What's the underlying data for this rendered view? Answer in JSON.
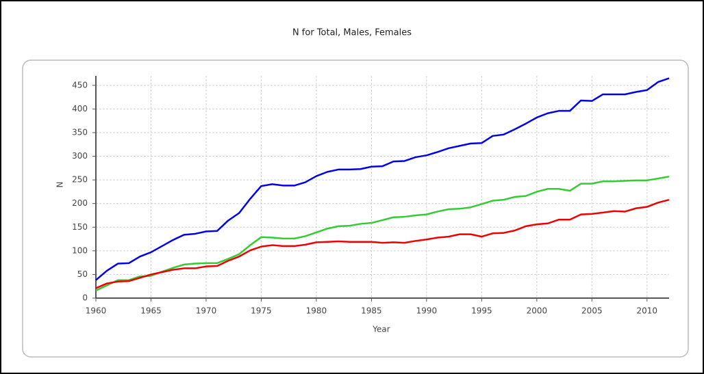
{
  "chart_data": {
    "type": "line",
    "title": "N for Total, Males, Females",
    "x_label": "Year",
    "y_label": "N",
    "x": [
      1960,
      1961,
      1962,
      1963,
      1964,
      1965,
      1966,
      1967,
      1968,
      1969,
      1970,
      1971,
      1972,
      1973,
      1974,
      1975,
      1976,
      1977,
      1978,
      1979,
      1980,
      1981,
      1982,
      1983,
      1984,
      1985,
      1986,
      1987,
      1988,
      1989,
      1990,
      1991,
      1992,
      1993,
      1994,
      1995,
      1996,
      1997,
      1998,
      1999,
      2000,
      2001,
      2002,
      2003,
      2004,
      2005,
      2006,
      2007,
      2008,
      2009,
      2010,
      2011,
      2012
    ],
    "series": [
      {
        "color": "#0000ee",
        "values": [
          38,
          58,
          73,
          74,
          88,
          97,
          110,
          123,
          134,
          136,
          141,
          142,
          164,
          180,
          210,
          237,
          241,
          238,
          238,
          245,
          258,
          267,
          272,
          272,
          273,
          278,
          279,
          289,
          290,
          298,
          302,
          309,
          317,
          322,
          327,
          328,
          343,
          346,
          357,
          369,
          382,
          391,
          396,
          396,
          418,
          417,
          431,
          431,
          431,
          436,
          440,
          457,
          465
        ]
      },
      {
        "color": "#33cc33",
        "values": [
          16,
          27,
          38,
          38,
          46,
          47,
          56,
          64,
          71,
          73,
          74,
          74,
          83,
          93,
          112,
          129,
          128,
          126,
          126,
          131,
          139,
          147,
          152,
          153,
          157,
          159,
          165,
          171,
          172,
          175,
          177,
          183,
          188,
          189,
          192,
          199,
          206,
          208,
          214,
          216,
          225,
          231,
          231,
          227,
          242,
          242,
          247,
          247,
          248,
          249,
          249,
          253,
          257
        ]
      },
      {
        "color": "#ee0000",
        "values": [
          21,
          31,
          35,
          36,
          43,
          50,
          55,
          60,
          63,
          63,
          67,
          68,
          79,
          88,
          101,
          109,
          112,
          110,
          110,
          113,
          118,
          119,
          120,
          119,
          119,
          119,
          117,
          118,
          117,
          121,
          124,
          128,
          130,
          135,
          135,
          130,
          137,
          138,
          143,
          152,
          156,
          158,
          166,
          166,
          177,
          178,
          181,
          184,
          183,
          190,
          193,
          202,
          208
        ]
      }
    ],
    "xlim": [
      1960,
      2012
    ],
    "xticks": [
      1960,
      1965,
      1970,
      1975,
      1980,
      1985,
      1990,
      1995,
      2000,
      2005,
      2010
    ],
    "ylim": [
      0,
      470
    ],
    "yticks": [
      0,
      50,
      100,
      150,
      200,
      250,
      300,
      350,
      400,
      450
    ],
    "grid": true
  }
}
